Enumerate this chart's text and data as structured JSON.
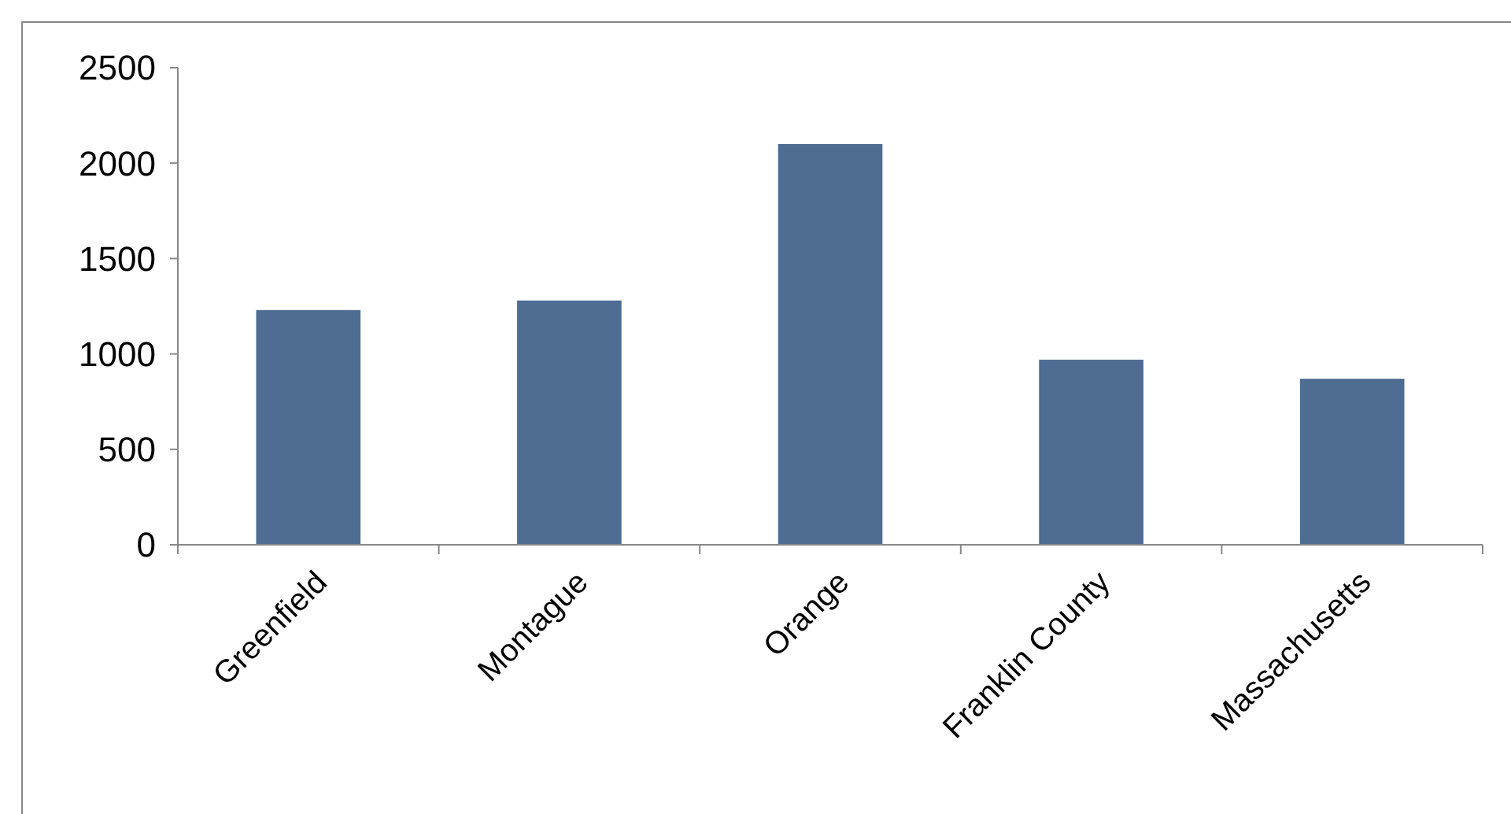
{
  "chart_data": {
    "type": "bar",
    "categories": [
      "Greenfield",
      "Montague",
      "Orange",
      "Franklin County",
      "Massachusetts"
    ],
    "values": [
      1230,
      1280,
      2100,
      970,
      870
    ],
    "color": "#4f6d93",
    "ylim": [
      0,
      2500
    ],
    "yticks": [
      0,
      500,
      1000,
      1500,
      2000,
      2500
    ],
    "grid": false
  }
}
